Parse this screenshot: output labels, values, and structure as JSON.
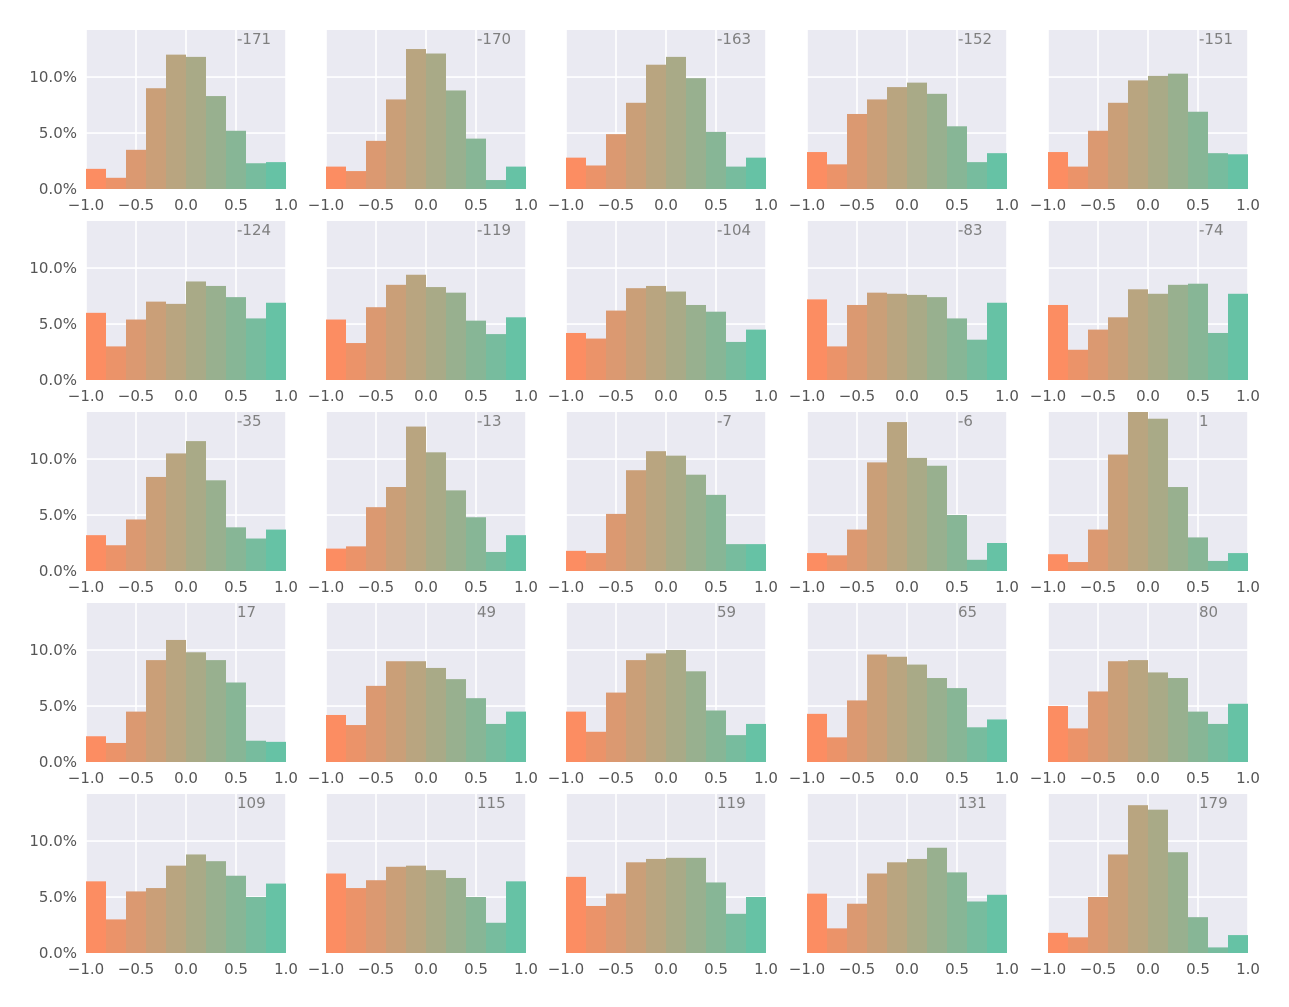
{
  "chart_data": {
    "type": "bar",
    "layout": "5x5 grid of histograms",
    "shared_y_axis": true,
    "xlim": [
      -1.0,
      1.0
    ],
    "ylim": [
      0,
      0.142
    ],
    "bin_edges": [
      -1.0,
      -0.8,
      -0.6,
      -0.4,
      -0.2,
      0.0,
      0.2,
      0.4,
      0.6,
      0.8,
      1.0
    ],
    "x_ticks": [
      -1.0,
      -0.5,
      0.0,
      0.5,
      1.0
    ],
    "x_tick_labels": [
      "−1.0",
      "−0.5",
      "0.0",
      "0.5",
      "1.0"
    ],
    "y_ticks": [
      0,
      0.05,
      0.1
    ],
    "y_tick_labels": [
      "0.0%",
      "5.0%",
      "10.0%"
    ],
    "grid": true,
    "colors": {
      "start": "#fc8d62",
      "end": "#66c2a5",
      "background": "#eaeaf2",
      "grid": "#ffffff",
      "text": "#555555",
      "label": "#7f7f7f"
    },
    "panels": [
      {
        "label": "-171",
        "values": [
          0.018,
          0.01,
          0.035,
          0.09,
          0.12,
          0.118,
          0.083,
          0.052,
          0.023,
          0.024
        ]
      },
      {
        "label": "-170",
        "values": [
          0.02,
          0.016,
          0.043,
          0.08,
          0.125,
          0.121,
          0.088,
          0.045,
          0.008,
          0.02
        ]
      },
      {
        "label": "-163",
        "values": [
          0.028,
          0.021,
          0.049,
          0.077,
          0.111,
          0.118,
          0.099,
          0.051,
          0.02,
          0.028
        ]
      },
      {
        "label": "-152",
        "values": [
          0.033,
          0.022,
          0.067,
          0.08,
          0.091,
          0.095,
          0.085,
          0.056,
          0.024,
          0.032
        ]
      },
      {
        "label": "-151",
        "values": [
          0.033,
          0.02,
          0.052,
          0.077,
          0.097,
          0.101,
          0.103,
          0.069,
          0.032,
          0.031
        ]
      },
      {
        "label": "-124",
        "values": [
          0.06,
          0.03,
          0.054,
          0.07,
          0.068,
          0.088,
          0.084,
          0.074,
          0.055,
          0.069
        ]
      },
      {
        "label": "-119",
        "values": [
          0.054,
          0.033,
          0.065,
          0.085,
          0.094,
          0.083,
          0.078,
          0.053,
          0.041,
          0.056
        ]
      },
      {
        "label": "-104",
        "values": [
          0.042,
          0.037,
          0.062,
          0.082,
          0.084,
          0.079,
          0.067,
          0.061,
          0.034,
          0.045
        ]
      },
      {
        "label": "-83",
        "values": [
          0.072,
          0.03,
          0.067,
          0.078,
          0.077,
          0.076,
          0.074,
          0.055,
          0.036,
          0.069
        ]
      },
      {
        "label": "-74",
        "values": [
          0.067,
          0.027,
          0.045,
          0.056,
          0.081,
          0.077,
          0.085,
          0.086,
          0.042,
          0.077
        ]
      },
      {
        "label": "-35",
        "values": [
          0.032,
          0.023,
          0.046,
          0.084,
          0.105,
          0.116,
          0.081,
          0.039,
          0.029,
          0.037
        ]
      },
      {
        "label": "-13",
        "values": [
          0.02,
          0.022,
          0.057,
          0.075,
          0.129,
          0.106,
          0.072,
          0.048,
          0.017,
          0.032
        ]
      },
      {
        "label": "-7",
        "values": [
          0.018,
          0.016,
          0.051,
          0.09,
          0.107,
          0.103,
          0.086,
          0.068,
          0.024,
          0.024
        ]
      },
      {
        "label": "-6",
        "values": [
          0.016,
          0.014,
          0.037,
          0.097,
          0.133,
          0.101,
          0.094,
          0.05,
          0.01,
          0.025
        ]
      },
      {
        "label": "1",
        "values": [
          0.015,
          0.008,
          0.037,
          0.104,
          0.145,
          0.136,
          0.075,
          0.03,
          0.009,
          0.016
        ]
      },
      {
        "label": "17",
        "values": [
          0.023,
          0.017,
          0.045,
          0.091,
          0.109,
          0.098,
          0.091,
          0.071,
          0.019,
          0.018
        ]
      },
      {
        "label": "49",
        "values": [
          0.042,
          0.033,
          0.068,
          0.09,
          0.09,
          0.084,
          0.074,
          0.057,
          0.034,
          0.045
        ]
      },
      {
        "label": "59",
        "values": [
          0.045,
          0.027,
          0.062,
          0.091,
          0.097,
          0.1,
          0.081,
          0.046,
          0.024,
          0.034
        ]
      },
      {
        "label": "65",
        "values": [
          0.043,
          0.022,
          0.055,
          0.096,
          0.094,
          0.087,
          0.075,
          0.066,
          0.031,
          0.038
        ]
      },
      {
        "label": "80",
        "values": [
          0.05,
          0.03,
          0.063,
          0.09,
          0.091,
          0.08,
          0.075,
          0.045,
          0.034,
          0.052
        ]
      },
      {
        "label": "109",
        "values": [
          0.064,
          0.03,
          0.055,
          0.058,
          0.078,
          0.088,
          0.082,
          0.069,
          0.05,
          0.062
        ]
      },
      {
        "label": "115",
        "values": [
          0.071,
          0.058,
          0.065,
          0.077,
          0.078,
          0.074,
          0.067,
          0.05,
          0.027,
          0.064
        ]
      },
      {
        "label": "119",
        "values": [
          0.068,
          0.042,
          0.053,
          0.081,
          0.084,
          0.085,
          0.085,
          0.063,
          0.035,
          0.05
        ]
      },
      {
        "label": "131",
        "values": [
          0.053,
          0.022,
          0.044,
          0.071,
          0.081,
          0.084,
          0.094,
          0.072,
          0.046,
          0.052
        ]
      },
      {
        "label": "179",
        "values": [
          0.018,
          0.014,
          0.05,
          0.088,
          0.132,
          0.128,
          0.09,
          0.032,
          0.005,
          0.016
        ]
      }
    ]
  }
}
